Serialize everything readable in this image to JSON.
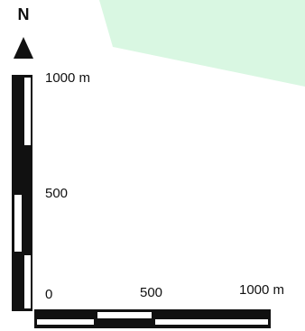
{
  "map": {
    "north_label": "N",
    "north_arrow_icon": "north-arrow-icon",
    "colors": {
      "green_area": "#d9f7e2",
      "scale_black": "#111111",
      "scale_white": "#ffffff"
    },
    "vertical_scale": {
      "labels": [
        "1000 m",
        "500"
      ]
    },
    "horizontal_scale": {
      "labels": [
        "0",
        "500",
        "1000 m"
      ]
    }
  }
}
